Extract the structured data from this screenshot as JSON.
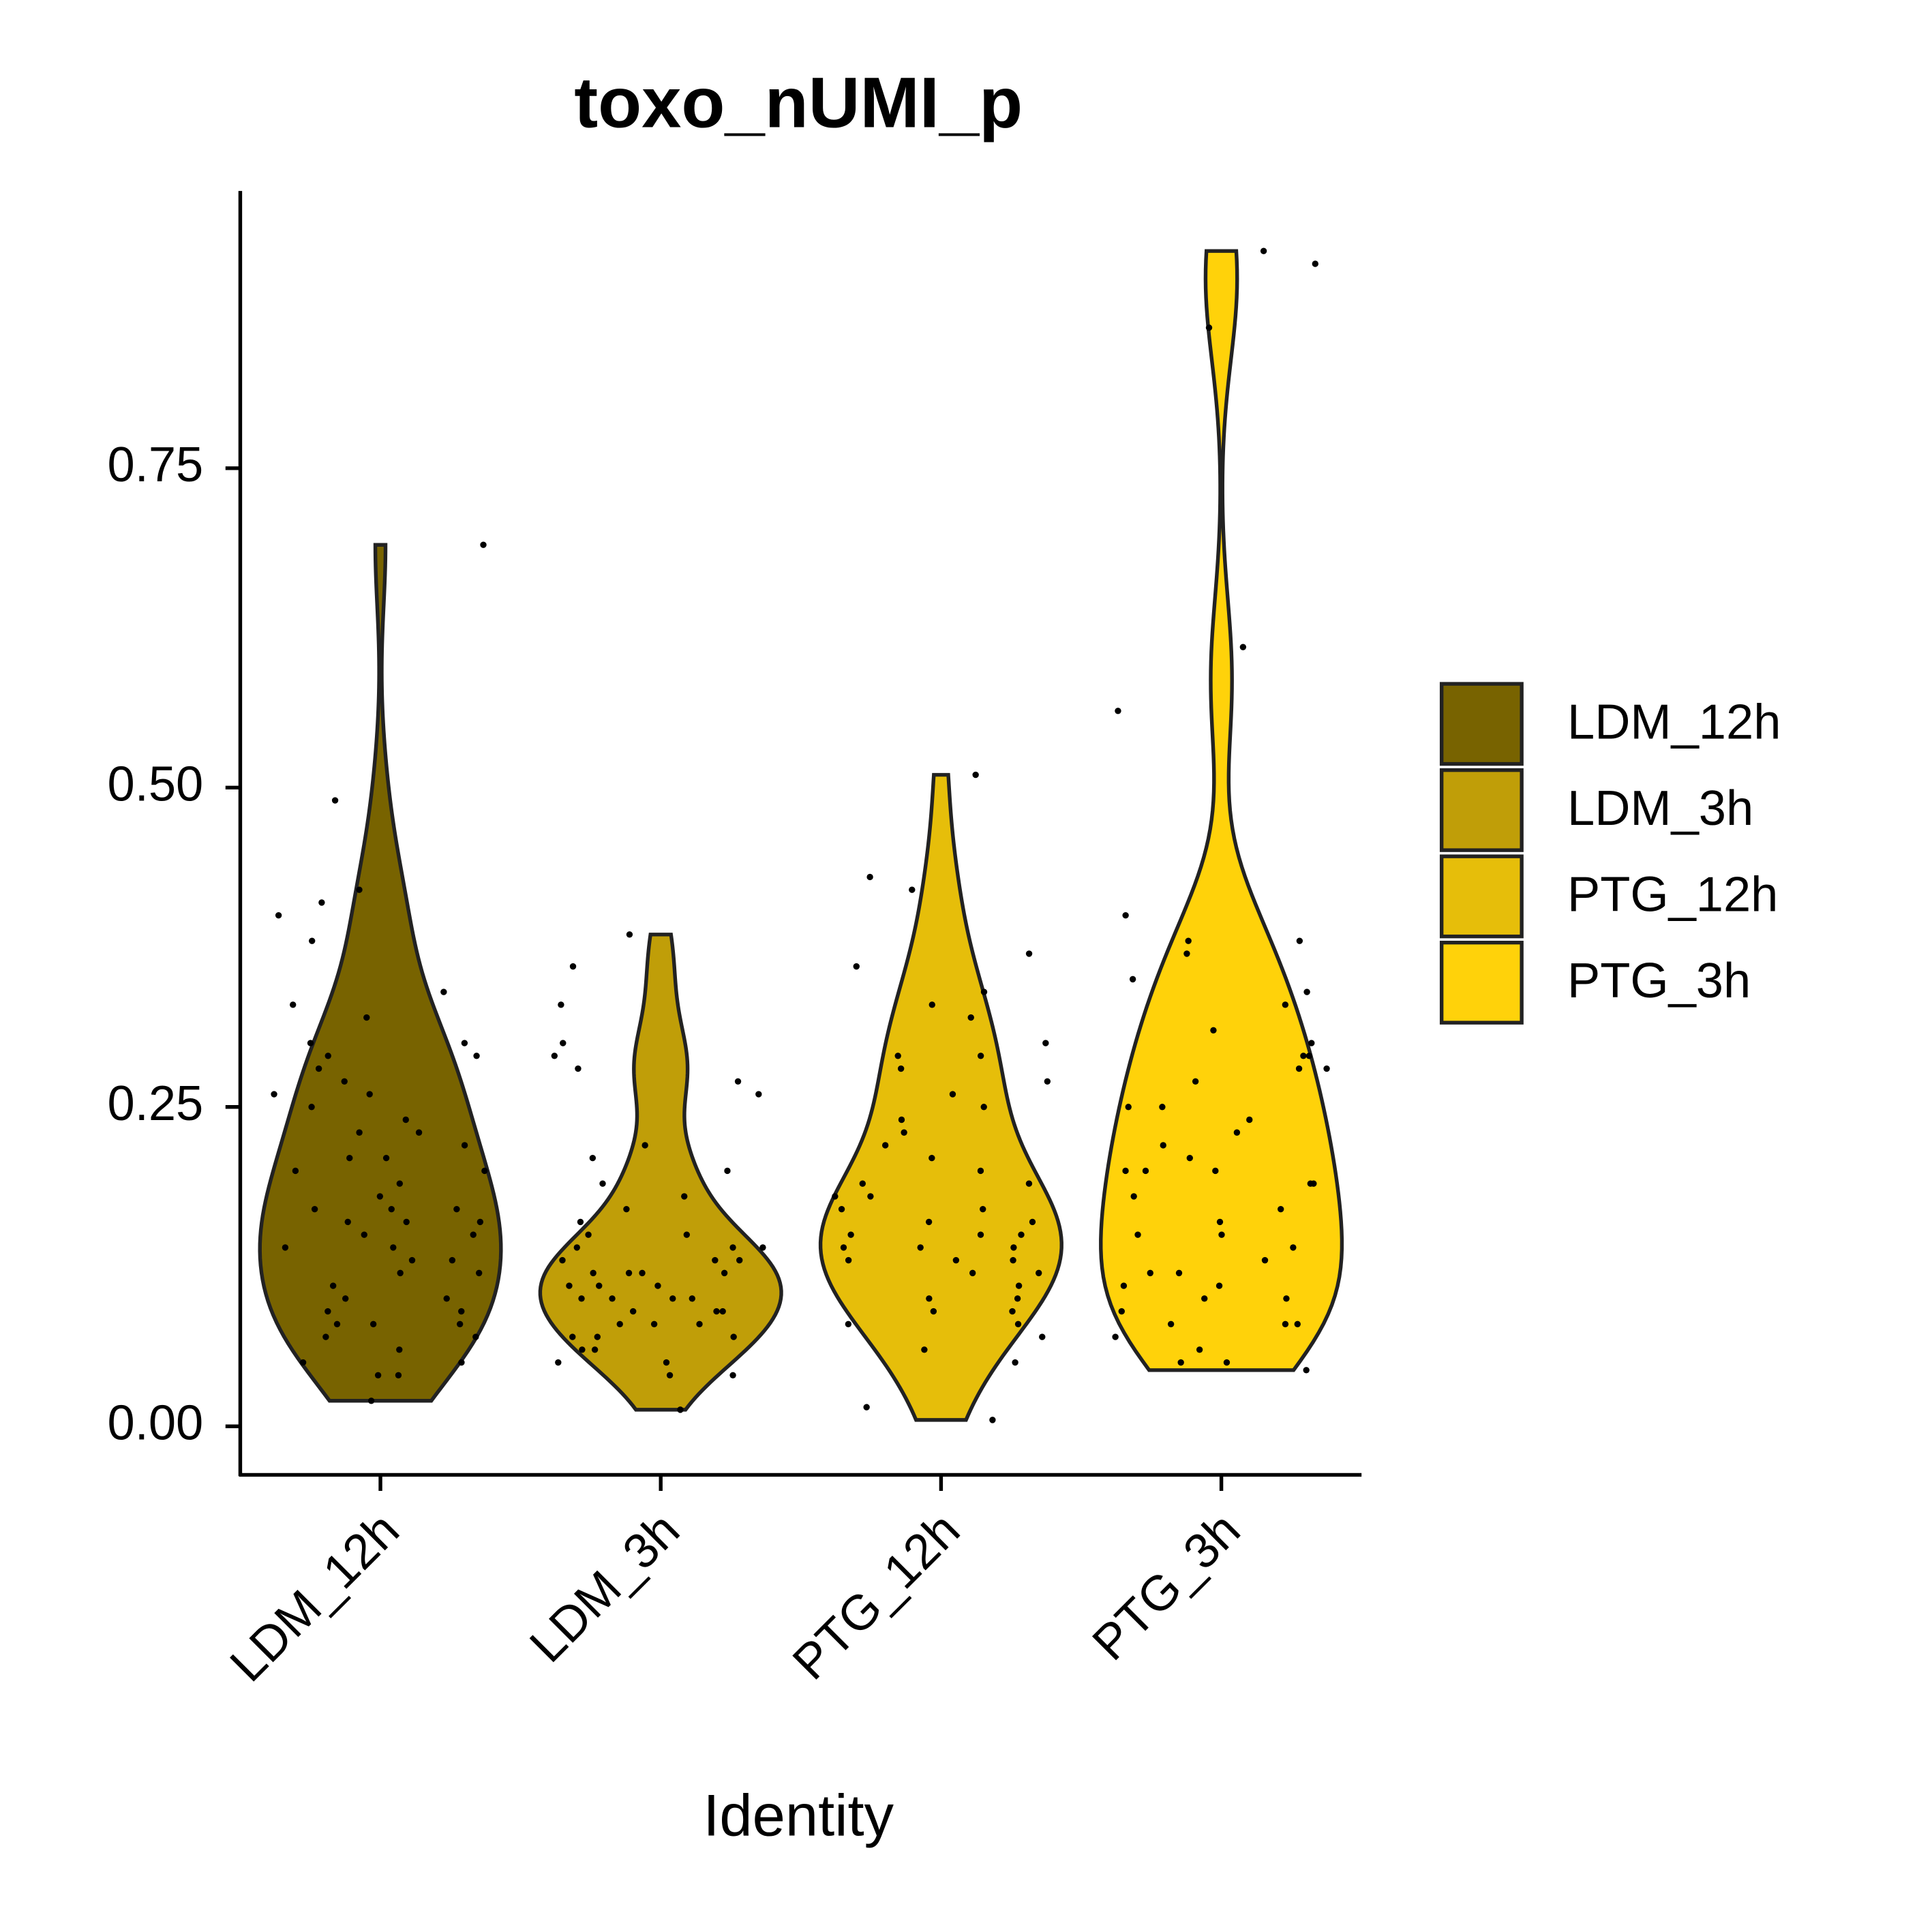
{
  "chart_data": {
    "type": "violin",
    "title": "toxo_nUMI_p",
    "x_label": "Identity",
    "categories": [
      "LDM_12h",
      "LDM_3h",
      "PTG_12h",
      "PTG_3h"
    ],
    "ylim": [
      -0.038,
      0.967
    ],
    "yticks": [
      {
        "value": 0,
        "label": "0.00"
      },
      0.25,
      {
        "value": 0.5,
        "label": "0.50"
      },
      0.75
    ],
    "legend": "right",
    "series": [
      {
        "name": "LDM_12h",
        "color": "#786300",
        "values": [
          0.69,
          0.49,
          0.42,
          0.41,
          0.4,
          0.38,
          0.34,
          0.33,
          0.32,
          0.3,
          0.3,
          0.29,
          0.29,
          0.28,
          0.27,
          0.26,
          0.26,
          0.25,
          0.24,
          0.23,
          0.23,
          0.22,
          0.21,
          0.21,
          0.2,
          0.2,
          0.19,
          0.18,
          0.17,
          0.17,
          0.17,
          0.16,
          0.16,
          0.16,
          0.15,
          0.15,
          0.14,
          0.14,
          0.13,
          0.13,
          0.12,
          0.12,
          0.11,
          0.1,
          0.1,
          0.09,
          0.09,
          0.08,
          0.08,
          0.08,
          0.07,
          0.07,
          0.06,
          0.05,
          0.05,
          0.04,
          0.04,
          0.02
        ]
      },
      {
        "name": "LDM_3h",
        "color": "#c09e08",
        "values": [
          0.385,
          0.36,
          0.33,
          0.3,
          0.29,
          0.28,
          0.27,
          0.26,
          0.22,
          0.21,
          0.2,
          0.19,
          0.18,
          0.17,
          0.16,
          0.15,
          0.15,
          0.14,
          0.14,
          0.14,
          0.13,
          0.13,
          0.13,
          0.12,
          0.12,
          0.12,
          0.12,
          0.11,
          0.11,
          0.11,
          0.1,
          0.1,
          0.1,
          0.1,
          0.09,
          0.09,
          0.09,
          0.08,
          0.08,
          0.08,
          0.07,
          0.07,
          0.07,
          0.06,
          0.06,
          0.05,
          0.05,
          0.04,
          0.04,
          0.013
        ]
      },
      {
        "name": "PTG_12h",
        "color": "#e6be0a",
        "values": [
          0.51,
          0.43,
          0.42,
          0.37,
          0.36,
          0.34,
          0.33,
          0.32,
          0.3,
          0.29,
          0.29,
          0.28,
          0.27,
          0.26,
          0.25,
          0.24,
          0.23,
          0.22,
          0.21,
          0.2,
          0.19,
          0.19,
          0.18,
          0.18,
          0.17,
          0.17,
          0.16,
          0.16,
          0.15,
          0.15,
          0.15,
          0.14,
          0.14,
          0.14,
          0.13,
          0.13,
          0.13,
          0.12,
          0.12,
          0.11,
          0.1,
          0.1,
          0.09,
          0.09,
          0.08,
          0.08,
          0.07,
          0.06,
          0.05,
          0.015,
          0.005
        ]
      },
      {
        "name": "PTG_3h",
        "color": "#ffd20a",
        "values": [
          0.92,
          0.91,
          0.86,
          0.61,
          0.56,
          0.4,
          0.38,
          0.38,
          0.37,
          0.35,
          0.34,
          0.33,
          0.31,
          0.3,
          0.29,
          0.29,
          0.28,
          0.28,
          0.27,
          0.25,
          0.25,
          0.24,
          0.23,
          0.22,
          0.21,
          0.2,
          0.2,
          0.2,
          0.19,
          0.19,
          0.18,
          0.17,
          0.16,
          0.15,
          0.15,
          0.14,
          0.13,
          0.12,
          0.12,
          0.11,
          0.11,
          0.1,
          0.1,
          0.09,
          0.08,
          0.08,
          0.08,
          0.07,
          0.06,
          0.05,
          0.05,
          0.044
        ]
      }
    ]
  }
}
